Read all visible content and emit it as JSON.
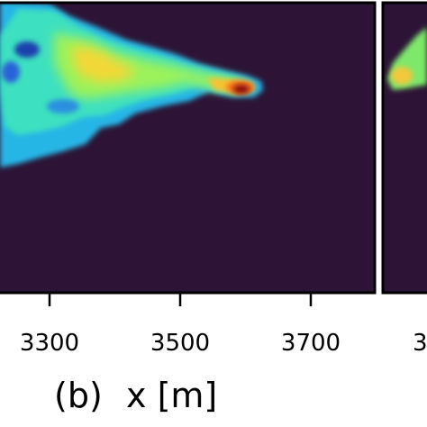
{
  "chart_data": [
    {
      "type": "heatmap",
      "panel": "(b)",
      "xlabel": "x [m]",
      "x_ticks": [
        3300,
        3500,
        3700
      ],
      "xlim": [
        3225,
        3800
      ],
      "background_color": "#2d1436",
      "colormap": "turbo",
      "plume": {
        "source_x": 3590,
        "direction": "spreads toward smaller x"
      }
    },
    {
      "type": "heatmap",
      "x_ticks_partial": [
        "3"
      ]
    }
  ]
}
